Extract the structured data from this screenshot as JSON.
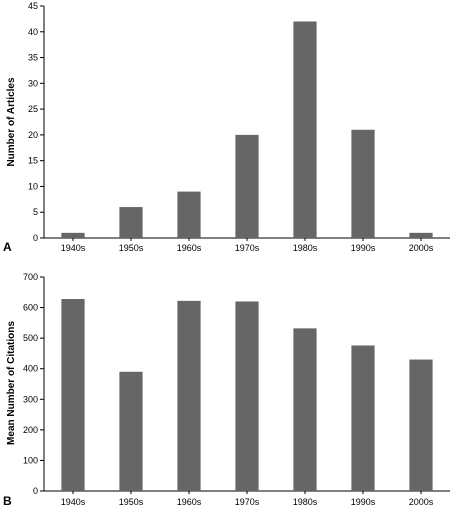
{
  "chart_data": [
    {
      "type": "bar",
      "panel_label": "A",
      "categories": [
        "1940s",
        "1950s",
        "1960s",
        "1970s",
        "1980s",
        "1990s",
        "2000s"
      ],
      "values": [
        1,
        6,
        9,
        20,
        42,
        21,
        1
      ],
      "ylabel": "Number of Articles",
      "xlabel": "",
      "ylim": [
        0,
        45
      ],
      "yticks": [
        0,
        5,
        10,
        15,
        20,
        25,
        30,
        35,
        40,
        45
      ],
      "bar_color": "#666666",
      "grid": false
    },
    {
      "type": "bar",
      "panel_label": "B",
      "categories": [
        "1940s",
        "1950s",
        "1960s",
        "1970s",
        "1980s",
        "1990s",
        "2000s"
      ],
      "values": [
        628,
        390,
        622,
        620,
        532,
        476,
        430
      ],
      "ylabel": "Mean Number of Citations",
      "xlabel": "",
      "ylim": [
        0,
        700
      ],
      "yticks": [
        0,
        100,
        200,
        300,
        400,
        500,
        600,
        700
      ],
      "bar_color": "#666666",
      "grid": false
    }
  ]
}
